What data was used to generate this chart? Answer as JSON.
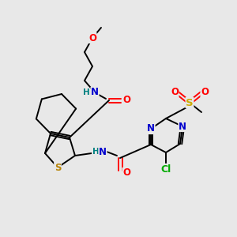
{
  "bg_color": "#e8e8e8",
  "bond_color": "#000000",
  "atom_colors": {
    "O": "#ff0000",
    "N": "#0000cd",
    "S_thio": "#b8860b",
    "S_sulf": "#ccaa00",
    "Cl": "#00aa00",
    "H": "#008080",
    "C": "#000000"
  },
  "font_size": 8.5,
  "line_width": 1.4
}
